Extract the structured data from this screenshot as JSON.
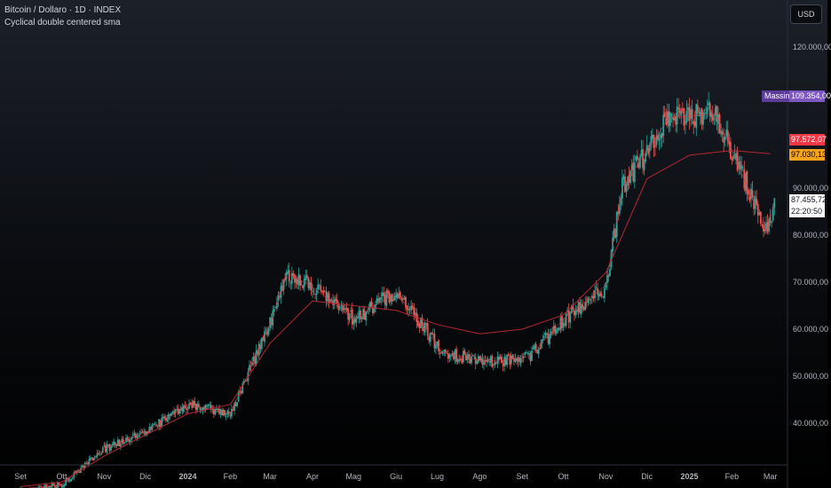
{
  "header": {
    "title": "Bitcoin / Dollaro · 1D · INDEX",
    "indicator": "Cyclical double centered sma"
  },
  "currency": "USD",
  "price_scale": {
    "ticks": [
      "120.000,00",
      "90.000,00",
      "80.000,00",
      "70.000,00",
      "60.000,00",
      "50.000,00",
      "40.000,00"
    ]
  },
  "time_scale": {
    "labels": [
      "Set",
      "Ott",
      "Nov",
      "Dic",
      "2024",
      "Feb",
      "Mar",
      "Apr",
      "Mag",
      "Giu",
      "Lug",
      "Ago",
      "Set",
      "Ott",
      "Nov",
      "Dic",
      "2025",
      "Feb",
      "Mar"
    ]
  },
  "tags": {
    "massimo_label": "Massimo",
    "massimo_value": "109.354,00",
    "ma_red": "97.572,07",
    "ma_orange": "97.030,13",
    "last_price": "87.455,72",
    "countdown": "22:20:50"
  },
  "colors": {
    "up": "#26a69a",
    "down": "#ef5350",
    "ma": "#b22833",
    "ma_fast": "#d1363f",
    "massimo": "#7e57c2",
    "ma_red_tag": "#f23645",
    "ma_orange_tag": "#f7a21b",
    "background": "#000000"
  },
  "chart_data": {
    "type": "candlestick",
    "title": "Bitcoin / Dollaro · 1D · INDEX",
    "y_axis": {
      "min": 30000,
      "max": 130000,
      "ticks": [
        40000,
        50000,
        60000,
        70000,
        80000,
        90000,
        120000
      ]
    },
    "x_axis": {
      "start": "2023-09",
      "end": "2025-03"
    },
    "series": [
      {
        "name": "Bitcoin / Dollaro",
        "kind": "close_approx",
        "x": [
          "2023-09-01",
          "2023-10-01",
          "2023-11-01",
          "2023-12-01",
          "2024-01-01",
          "2024-02-01",
          "2024-03-01",
          "2024-03-14",
          "2024-04-01",
          "2024-05-01",
          "2024-06-01",
          "2024-07-05",
          "2024-08-05",
          "2024-09-06",
          "2024-10-01",
          "2024-11-01",
          "2024-11-13",
          "2024-12-17",
          "2025-01-20",
          "2025-02-01",
          "2025-02-27",
          "2025-03-04"
        ],
        "y": [
          26000,
          27000,
          34500,
          38000,
          44000,
          42000,
          61000,
          72000,
          69000,
          62000,
          68000,
          55000,
          53000,
          54000,
          62000,
          69000,
          90000,
          105000,
          106000,
          98000,
          80000,
          87455.72
        ]
      },
      {
        "name": "Cyclical double centered sma",
        "x": [
          "2023-09-01",
          "2023-10-01",
          "2023-11-01",
          "2023-12-01",
          "2024-01-01",
          "2024-02-01",
          "2024-03-01",
          "2024-04-01",
          "2024-05-01",
          "2024-06-01",
          "2024-07-01",
          "2024-08-01",
          "2024-09-01",
          "2024-10-01",
          "2024-11-01",
          "2024-12-01",
          "2025-01-01",
          "2025-02-01",
          "2025-03-01"
        ],
        "y": [
          26500,
          27500,
          33000,
          37500,
          42000,
          44000,
          57000,
          66000,
          65000,
          64000,
          61000,
          59000,
          60000,
          63000,
          72000,
          92000,
          97000,
          98000,
          97300
        ]
      }
    ],
    "annotations": [
      {
        "label": "Massimo",
        "value": 109354.0
      },
      {
        "value": 97572.07
      },
      {
        "value": 97030.13
      },
      {
        "value": 87455.72
      }
    ]
  }
}
